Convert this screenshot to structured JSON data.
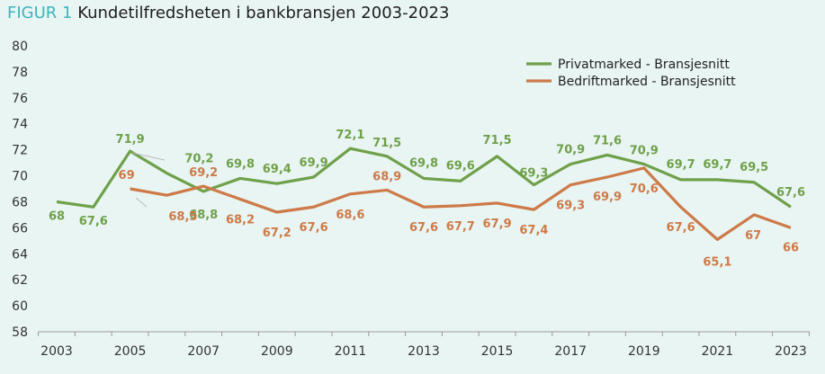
{
  "header": {
    "figure_prefix": "FIGUR 1",
    "title": "Kundetilfredsheten i bankbransjen 2003-2023"
  },
  "chart_data": {
    "type": "line",
    "x": [
      2003,
      2004,
      2005,
      2006,
      2007,
      2008,
      2009,
      2010,
      2011,
      2012,
      2013,
      2014,
      2015,
      2016,
      2017,
      2018,
      2019,
      2020,
      2021,
      2022,
      2023
    ],
    "x_ticks": [
      "2003",
      "2005",
      "2007",
      "2009",
      "2011",
      "2013",
      "2015",
      "2017",
      "2019",
      "2021",
      "2023"
    ],
    "y_ticks": [
      "58",
      "60",
      "62",
      "64",
      "66",
      "68",
      "70",
      "72",
      "74",
      "76",
      "78",
      "80"
    ],
    "ylim": [
      58,
      80
    ],
    "legend_position": "top-right",
    "series": [
      {
        "name": "Privatmarked - Bransjesnitt",
        "color": "#6fa04a",
        "values": [
          68,
          67.6,
          71.9,
          70.2,
          68.8,
          69.8,
          69.4,
          69.9,
          72.1,
          71.5,
          69.8,
          69.6,
          71.5,
          69.3,
          70.9,
          71.6,
          70.9,
          69.7,
          69.7,
          69.5,
          67.6
        ],
        "labels": [
          "68",
          "67,6",
          "71,9",
          "70,2",
          "68,8",
          "69,8",
          "69,4",
          "69,9",
          "72,1",
          "71,5",
          "69,8",
          "69,6",
          "71,5",
          "69,3",
          "70,9",
          "71,6",
          "70,9",
          "69,7",
          "69,7",
          "69,5",
          "67,6"
        ]
      },
      {
        "name": "Bedriftmarked - Bransjesnitt",
        "color": "#cd7a48",
        "values": [
          null,
          null,
          69,
          68.5,
          69.2,
          68.2,
          67.2,
          67.6,
          68.6,
          68.9,
          67.6,
          67.7,
          67.9,
          67.4,
          69.3,
          69.9,
          70.6,
          67.6,
          65.1,
          67,
          66
        ],
        "labels": [
          null,
          null,
          "69",
          "68,5",
          "69,2",
          "68,2",
          "67,2",
          "67,6",
          "68,6",
          "68,9",
          "67,6",
          "67,7",
          "67,9",
          "67,4",
          "69,3",
          "69,9",
          "70,6",
          "67,6",
          "65,1",
          "67",
          "66"
        ]
      }
    ]
  }
}
